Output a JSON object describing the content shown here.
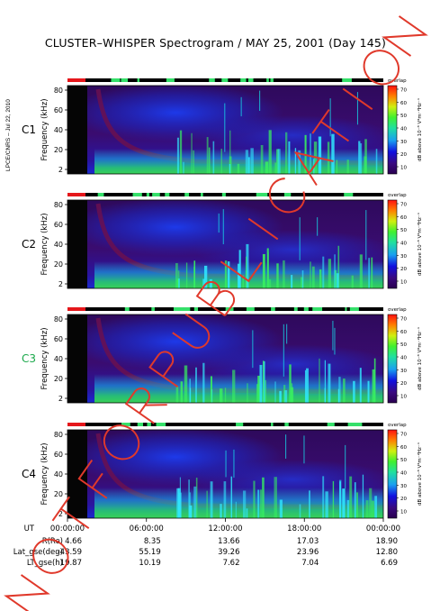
{
  "title": "CLUSTER–WHISPER Spectrogram / MAY 25, 2001 (Day 145)",
  "side_info": "LPCE/CNRS – Jul 22, 2010",
  "colors": {
    "background": "#ffffff",
    "spectrogram_low": "#3a0a66",
    "spectrogram_mid": "#1432d2",
    "spectrogram_high": "#28e63c",
    "status_red": "#e5171b",
    "status_green": "#35e06a",
    "stamp_red": "#e0392b"
  },
  "chart_data": {
    "type": "heatmap",
    "panels": [
      {
        "label": "C1",
        "label_color": "#000000"
      },
      {
        "label": "C2",
        "label_color": "#000000"
      },
      {
        "label": "C3",
        "label_color": "#1aa84a"
      },
      {
        "label": "C4",
        "label_color": "#000000"
      }
    ],
    "ylabel": "Frequency (kHz)",
    "yticks": [
      "80",
      "60",
      "40",
      "20",
      "2"
    ],
    "ylim": [
      2,
      80
    ],
    "status_label": "overlap",
    "colorbar": {
      "label": "dB above 10⁻⁸ V²m⁻²Hz⁻¹",
      "ticks": [
        "70",
        "60",
        "50",
        "40",
        "30",
        "20",
        "10"
      ],
      "range": [
        10,
        70
      ]
    },
    "x_axis": {
      "name": "UT",
      "tick_labels": [
        "00:00:00",
        "06:00:00",
        "12:00:00",
        "18:00:00",
        "00:00:00"
      ]
    },
    "orbit_table": [
      {
        "name": "R(Re)",
        "values": [
          "4.66",
          "8.35",
          "13.66",
          "17.03",
          "18.90"
        ]
      },
      {
        "name": "Lat_gse(deg)",
        "values": [
          "-43.59",
          "55.19",
          "39.26",
          "23.96",
          "12.80"
        ]
      },
      {
        "name": "LT_gse(h)",
        "values": [
          "19.87",
          "10.19",
          "7.62",
          "7.04",
          "6.69"
        ]
      }
    ]
  },
  "watermark": {
    "words": [
      "NOT",
      "FOR",
      "PUBLICATION"
    ],
    "letters": [
      "N",
      "O",
      "T",
      "F",
      "O",
      "R",
      "P",
      "U",
      "B",
      "L",
      "I",
      "C",
      "A",
      "T",
      "I",
      "O",
      "N"
    ]
  }
}
